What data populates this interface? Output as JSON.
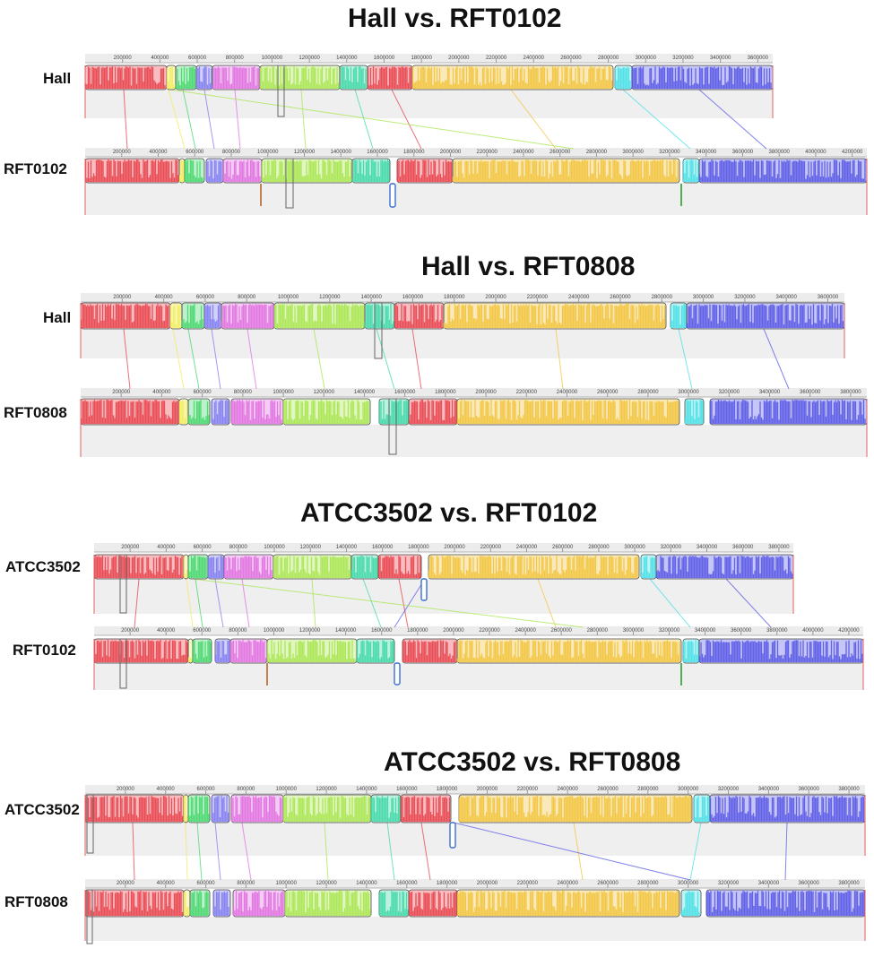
{
  "panels": [
    {
      "title": "Hall vs. RFT0102",
      "genome_a": "Hall",
      "genome_b": "RFT0102",
      "ticks_a": [
        "200000",
        "400000",
        "600000",
        "800000",
        "1000000",
        "1200000",
        "1400000",
        "1600000",
        "1800000",
        "2000000",
        "2200000",
        "2400000",
        "2600000",
        "2800000",
        "3000000",
        "3200000",
        "3400000",
        "3600000"
      ],
      "ticks_b": [
        "200000",
        "400000",
        "600000",
        "800000",
        "1000000",
        "1200000",
        "1400000",
        "1600000",
        "1800000",
        "2000000",
        "2200000",
        "2400000",
        "2600000",
        "2800000",
        "3000000",
        "3200000",
        "3400000",
        "3600000",
        "3800000",
        "4000000",
        "4200000"
      ]
    },
    {
      "title": "Hall vs. RFT0808",
      "genome_a": "Hall",
      "genome_b": "RFT0808",
      "ticks_a": [
        "200000",
        "400000",
        "600000",
        "800000",
        "1000000",
        "1200000",
        "1400000",
        "1600000",
        "1800000",
        "2000000",
        "2200000",
        "2400000",
        "2600000",
        "2800000",
        "3000000",
        "3200000",
        "3400000",
        "3600000"
      ],
      "ticks_b": [
        "200000",
        "400000",
        "600000",
        "800000",
        "1000000",
        "1200000",
        "1400000",
        "1600000",
        "1800000",
        "2000000",
        "2200000",
        "2400000",
        "2600000",
        "2800000",
        "3000000",
        "3200000",
        "3400000",
        "3600000",
        "3800000"
      ]
    },
    {
      "title": "ATCC3502 vs. RFT0102",
      "genome_a": "ATCC3502",
      "genome_b": "RFT0102",
      "ticks_a": [
        "200000",
        "400000",
        "600000",
        "800000",
        "1000000",
        "1200000",
        "1400000",
        "1600000",
        "1800000",
        "2000000",
        "2200000",
        "2400000",
        "2600000",
        "2800000",
        "3000000",
        "3200000",
        "3400000",
        "3600000",
        "3800000"
      ],
      "ticks_b": [
        "200000",
        "400000",
        "600000",
        "800000",
        "1000000",
        "1200000",
        "1400000",
        "1600000",
        "1800000",
        "2000000",
        "2200000",
        "2400000",
        "2600000",
        "2800000",
        "3000000",
        "3200000",
        "3400000",
        "3600000",
        "3800000",
        "4000000",
        "4200000"
      ]
    },
    {
      "title": "ATCC3502 vs. RFT0808",
      "genome_a": "ATCC3502",
      "genome_b": "RFT0808",
      "ticks_a": [
        "200000",
        "400000",
        "600000",
        "800000",
        "1000000",
        "1200000",
        "1400000",
        "1600000",
        "1800000",
        "2000000",
        "2200000",
        "2400000",
        "2600000",
        "2800000",
        "3000000",
        "3200000",
        "3400000",
        "3600000",
        "3800000"
      ],
      "ticks_b": [
        "200000",
        "400000",
        "600000",
        "800000",
        "1000000",
        "1200000",
        "1400000",
        "1600000",
        "1800000",
        "2000000",
        "2200000",
        "2400000",
        "2600000",
        "2800000",
        "3000000",
        "3200000",
        "3400000",
        "3600000",
        "3800000"
      ]
    }
  ],
  "block_colors": {
    "red": "#e8414b",
    "yellow": "#f2ec5c",
    "green": "#45d76b",
    "purple": "#7f7cf0",
    "magenta": "#e070e0",
    "lime": "#a8e64f",
    "teal": "#3ed8a6",
    "gold": "#f2c43c",
    "cyan": "#49dfe6",
    "blue": "#5858e6"
  }
}
